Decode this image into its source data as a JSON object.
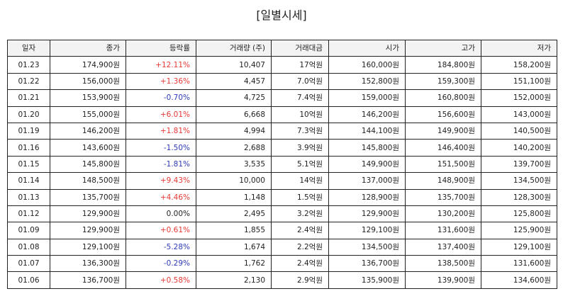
{
  "page": {
    "title": "[일별시세]"
  },
  "table": {
    "headers": [
      "일자",
      "종가",
      "등락률",
      "거래량 (주)",
      "거래대금",
      "시가",
      "고가",
      "저가"
    ],
    "rows": [
      [
        "01.23",
        "174,900원",
        "+12.11%",
        "10,407",
        "17억원",
        "160,000원",
        "184,800원",
        "158,200원"
      ],
      [
        "01.22",
        "156,000원",
        "+1.36%",
        "4,457",
        "7.0억원",
        "152,800원",
        "159,300원",
        "151,100원"
      ],
      [
        "01.21",
        "153,900원",
        "-0.70%",
        "4,725",
        "7.4억원",
        "159,000원",
        "160,800원",
        "152,000원"
      ],
      [
        "01.20",
        "155,000원",
        "+6.01%",
        "6,668",
        "10억원",
        "146,200원",
        "156,600원",
        "143,000원"
      ],
      [
        "01.19",
        "146,200원",
        "+1.81%",
        "4,994",
        "7.3억원",
        "144,100원",
        "149,900원",
        "140,500원"
      ],
      [
        "01.16",
        "143,600원",
        "-1.50%",
        "2,688",
        "3.9억원",
        "145,800원",
        "146,400원",
        "140,200원"
      ],
      [
        "01.15",
        "145,800원",
        "-1.81%",
        "3,535",
        "5.1억원",
        "149,900원",
        "151,500원",
        "139,700원"
      ],
      [
        "01.14",
        "148,500원",
        "+9.43%",
        "10,000",
        "14억원",
        "137,000원",
        "148,900원",
        "134,500원"
      ],
      [
        "01.13",
        "135,700원",
        "+4.46%",
        "1,148",
        "1.5억원",
        "128,900원",
        "135,700원",
        "128,300원"
      ],
      [
        "01.12",
        "129,900원",
        "0.00%",
        "2,495",
        "3.2억원",
        "129,900원",
        "130,200원",
        "125,800원"
      ],
      [
        "01.09",
        "129,900원",
        "+0.61%",
        "1,855",
        "2.4억원",
        "129,100원",
        "131,600원",
        "125,900원"
      ],
      [
        "01.08",
        "129,100원",
        "-5.28%",
        "1,674",
        "2.2억원",
        "134,500원",
        "137,400원",
        "129,100원"
      ],
      [
        "01.07",
        "136,300원",
        "-0.29%",
        "1,762",
        "2.4억원",
        "136,700원",
        "138,500원",
        "131,600원"
      ],
      [
        "01.06",
        "136,700원",
        "+0.58%",
        "2,130",
        "2.9억원",
        "135,900원",
        "139,900원",
        "134,600원"
      ]
    ]
  },
  "colors": {
    "up": "#e53935",
    "down": "#2e3ab5",
    "flat": "#222222",
    "header_bg": "#f3f3f3",
    "border": "#222222"
  }
}
